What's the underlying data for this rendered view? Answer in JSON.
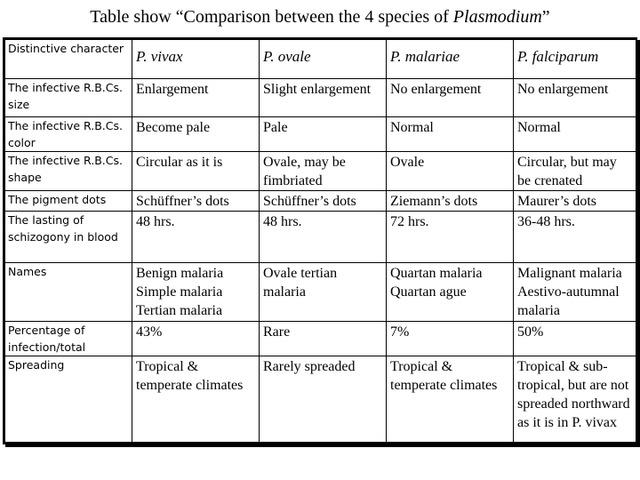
{
  "title": {
    "prefix": "Table show “Comparison between the 4 species of ",
    "italic": "Plasmodium",
    "suffix": "”"
  },
  "table": {
    "header_label": "Distinctive character",
    "species": [
      "P. vivax",
      "P. ovale",
      "P. malariae",
      "P. falciparum"
    ],
    "rows": [
      {
        "label": "The infective R.B.Cs. size",
        "cells": [
          "Enlargement",
          "Slight enlargement",
          "No enlargement",
          "No enlargement"
        ]
      },
      {
        "label": "The infective R.B.Cs. color",
        "cells": [
          "Become pale",
          "Pale",
          "Normal",
          "Normal"
        ]
      },
      {
        "label": "The infective R.B.Cs. shape",
        "cells": [
          "Circular as it is",
          "Ovale, may be fimbriated",
          "Ovale",
          "Circular, but may be crenated"
        ]
      },
      {
        "label": "The pigment dots",
        "cells": [
          "Schüffner’s dots",
          "Schüffner’s dots",
          "Ziemann’s dots",
          "Maurer’s dots"
        ]
      },
      {
        "label": "The lasting of schizogony in blood",
        "cells": [
          "48 hrs.",
          "48 hrs.",
          "72 hrs.",
          "36-48 hrs."
        ]
      },
      {
        "label": "Names",
        "cells": [
          "Benign malaria Simple malaria Tertian malaria",
          "Ovale tertian malaria",
          "Quartan malaria Quartan ague",
          "Malignant malaria Aestivo-autumnal malaria"
        ]
      },
      {
        "label": "Percentage of infection/total",
        "cells": [
          "43%",
          "Rare",
          "7%",
          "50%"
        ]
      },
      {
        "label": "Spreading",
        "cells": [
          "Tropical & temperate climates",
          "Rarely spreaded",
          "Tropical & temperate climates",
          "Tropical & sub-tropical, but are not spreaded northward as it is in P. vivax"
        ]
      }
    ]
  }
}
